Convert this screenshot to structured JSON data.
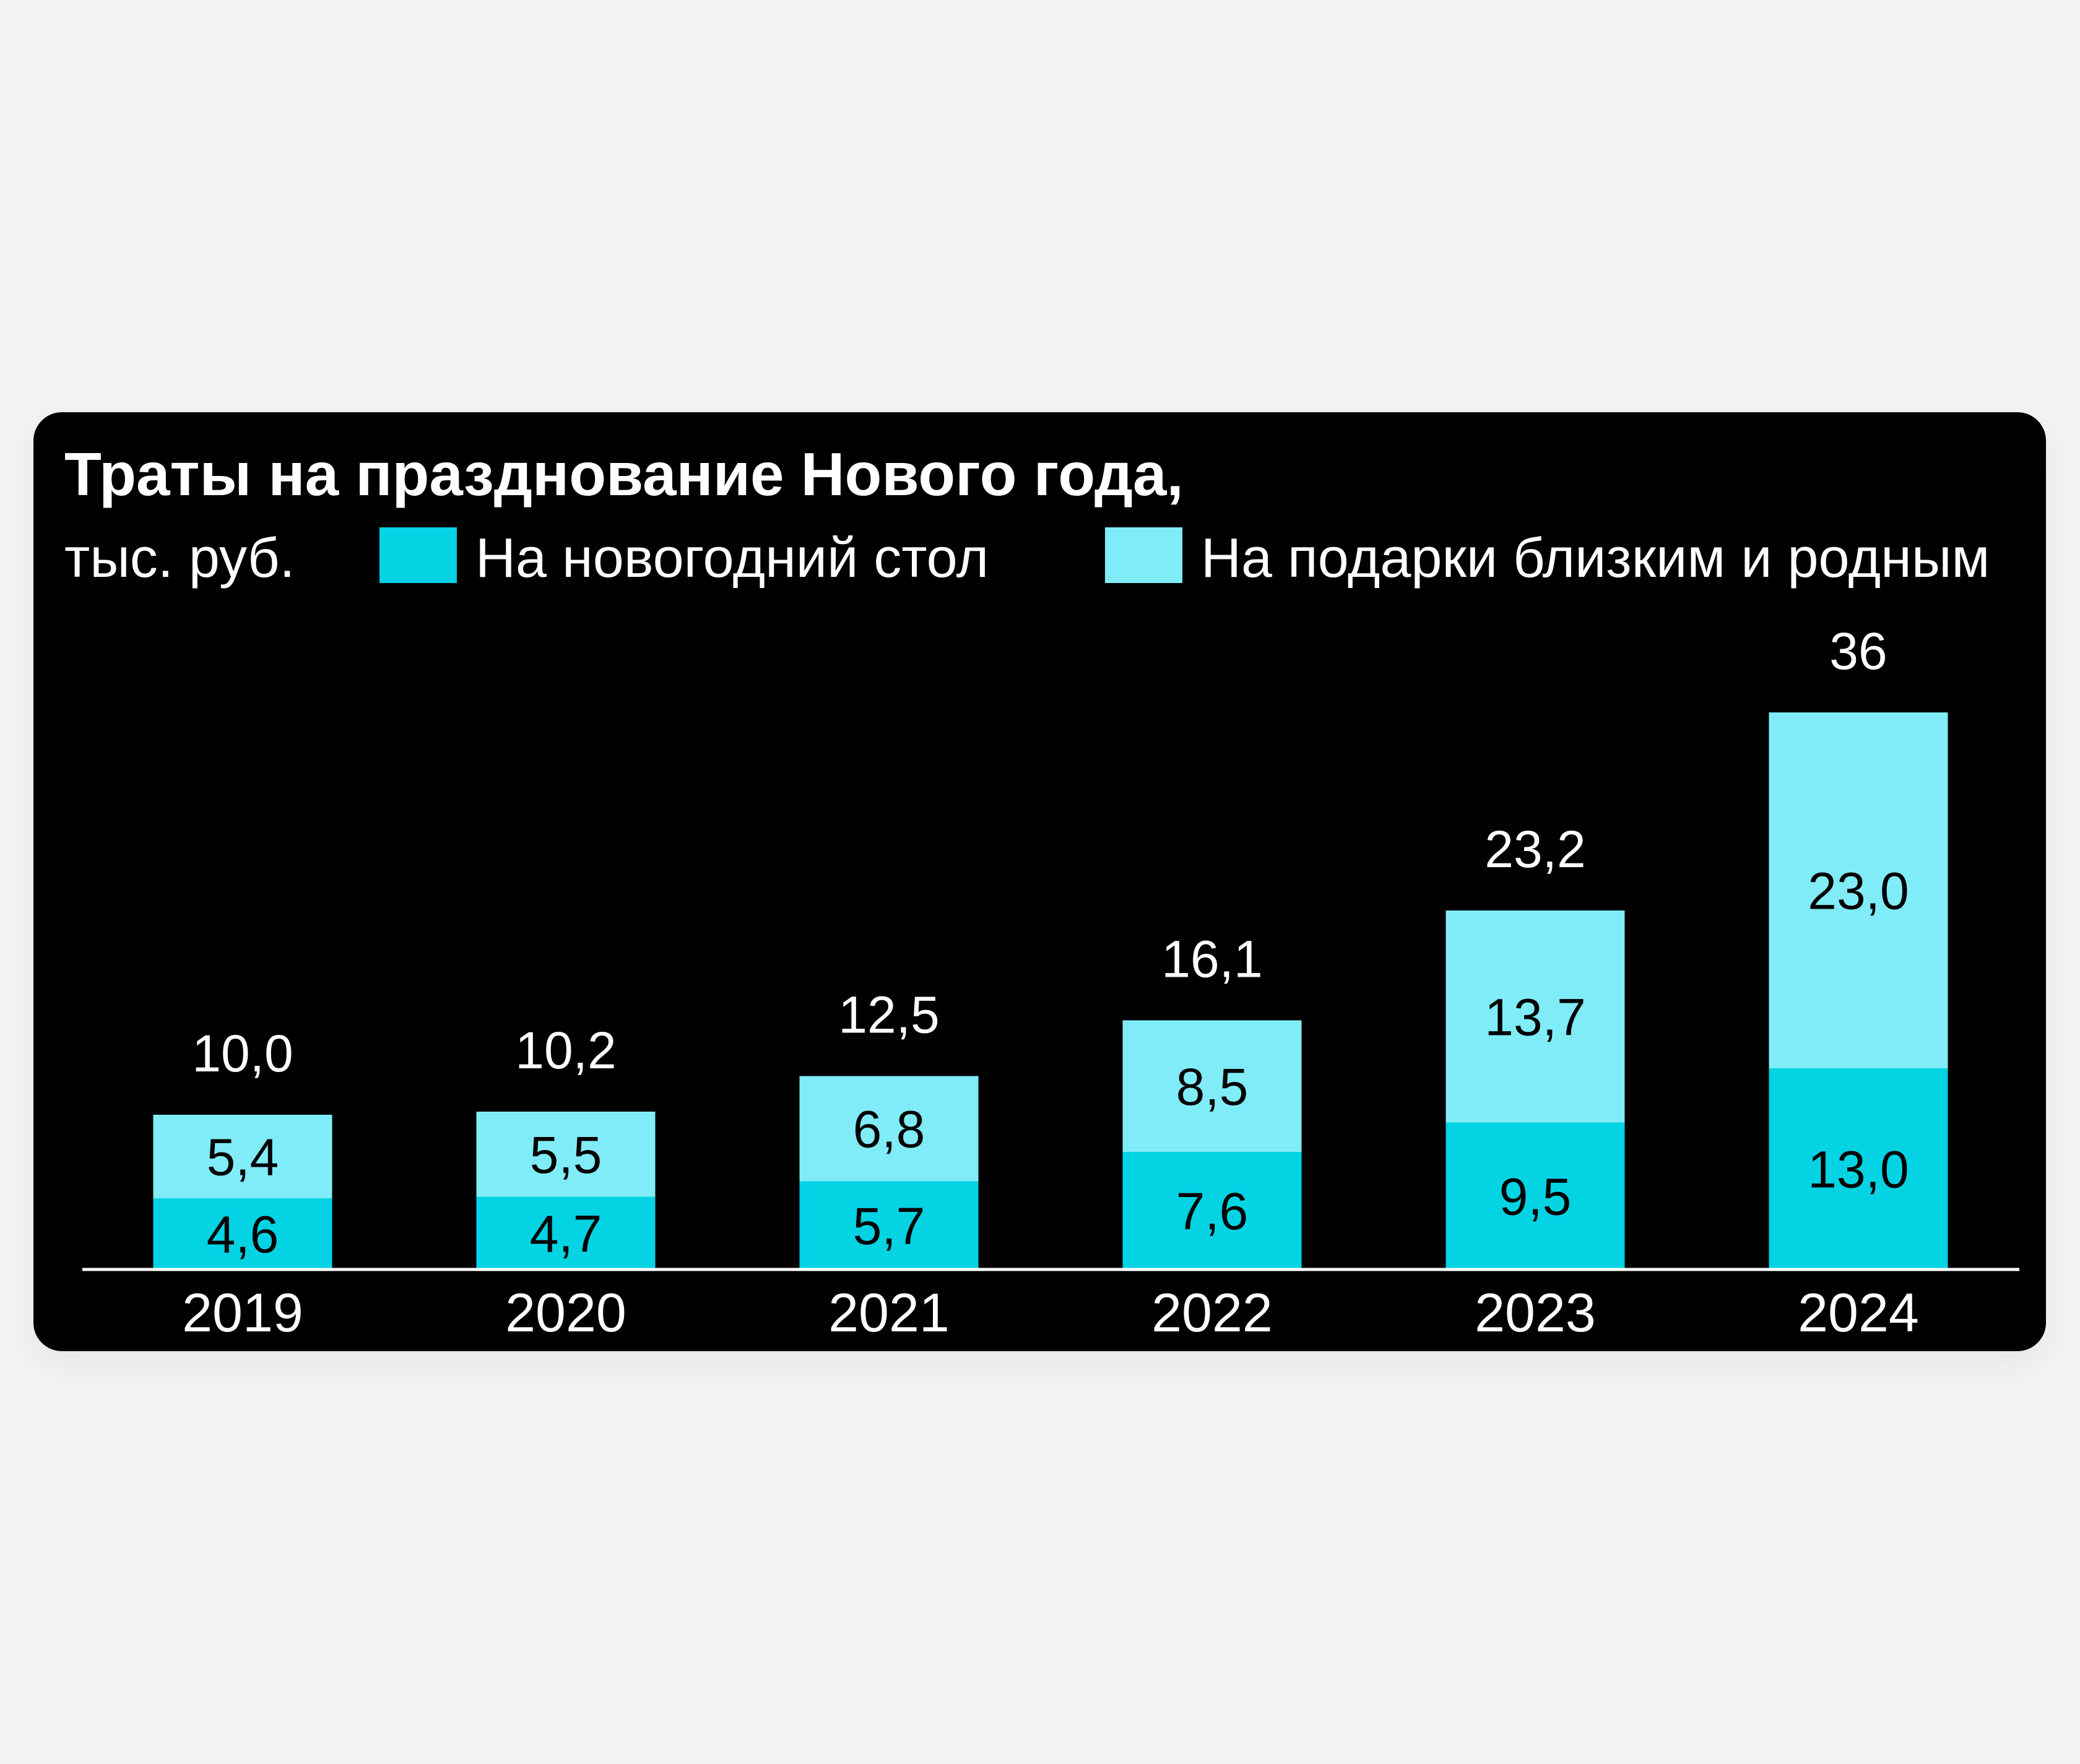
{
  "chart_data": {
    "type": "bar",
    "stacked": true,
    "title": "Траты на празднование Нового года,",
    "unit": "тыс. руб.",
    "categories": [
      "2019",
      "2020",
      "2021",
      "2022",
      "2023",
      "2024"
    ],
    "series": [
      {
        "name": "На новогодний стол",
        "color": "#03d3e3",
        "values": [
          4.6,
          4.7,
          5.7,
          7.6,
          9.5,
          13.0
        ],
        "labels": [
          "4,6",
          "4,7",
          "5,7",
          "7,6",
          "9,5",
          "13,0"
        ]
      },
      {
        "name": "На подарки близким и родным",
        "color": "#80ecf7",
        "values": [
          5.4,
          5.5,
          6.8,
          8.5,
          13.7,
          23.0
        ],
        "labels": [
          "5,4",
          "5,5",
          "6,8",
          "8,5",
          "13,7",
          "23,0"
        ]
      }
    ],
    "totals": [
      10.0,
      10.2,
      12.5,
      16.1,
      23.2,
      36
    ],
    "total_labels": [
      "10,0",
      "10,2",
      "12,5",
      "16,1",
      "23,2",
      "36"
    ],
    "ylim": [
      0,
      36
    ],
    "grid": false,
    "legend_placement": "top",
    "background": "#000000"
  }
}
